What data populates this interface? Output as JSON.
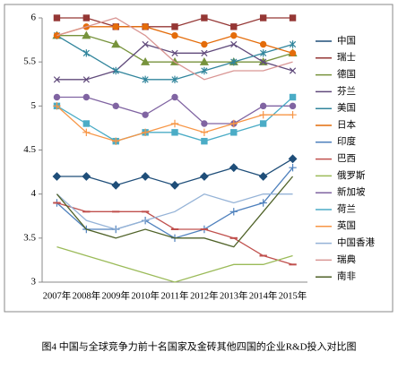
{
  "chart_data": {
    "type": "line",
    "caption": "图4 中国与全球竞争力前十名国家及金砖其他四国的企业R&D投入对比图",
    "categories": [
      "2007年",
      "2008年",
      "2009年",
      "2010年",
      "2011年",
      "2012年",
      "2013年",
      "2014年",
      "2015年"
    ],
    "ylim": [
      3,
      6
    ],
    "yticks": [
      3,
      3.5,
      4,
      4.5,
      5,
      5.5,
      6
    ],
    "grid": false,
    "legend": "right",
    "series": [
      {
        "name": "中国",
        "color": "#1f4e79",
        "marker": "diamond",
        "values": [
          4.2,
          4.2,
          4.1,
          4.2,
          4.1,
          4.2,
          4.3,
          4.2,
          4.4
        ]
      },
      {
        "name": "瑞士",
        "color": "#953735",
        "marker": "square",
        "values": [
          6,
          6,
          5.9,
          5.9,
          5.9,
          6,
          5.9,
          6,
          6
        ]
      },
      {
        "name": "德国",
        "color": "#77933c",
        "marker": "triangle",
        "values": [
          5.8,
          5.8,
          5.7,
          5.5,
          5.5,
          5.5,
          5.5,
          5.5,
          5.6
        ]
      },
      {
        "name": "芬兰",
        "color": "#604a7b",
        "marker": "x",
        "values": [
          5.3,
          5.3,
          5.4,
          5.7,
          5.6,
          5.6,
          5.7,
          5.5,
          5.4
        ]
      },
      {
        "name": "美国",
        "color": "#31859c",
        "marker": "star",
        "values": [
          5.8,
          5.6,
          5.4,
          5.3,
          5.3,
          5.4,
          5.5,
          5.6,
          5.7
        ]
      },
      {
        "name": "日本",
        "color": "#e46c0a",
        "marker": "circle",
        "values": [
          5.8,
          5.9,
          5.9,
          5.9,
          5.8,
          5.7,
          5.8,
          5.7,
          5.6
        ]
      },
      {
        "name": "印度",
        "color": "#4f81bd",
        "marker": "plus",
        "values": [
          3.9,
          3.6,
          3.6,
          3.7,
          3.5,
          3.6,
          3.8,
          3.9,
          4.3
        ]
      },
      {
        "name": "巴西",
        "color": "#c0504d",
        "marker": "dash",
        "values": [
          3.9,
          3.8,
          3.8,
          3.8,
          3.6,
          3.6,
          3.5,
          3.3,
          3.2
        ]
      },
      {
        "name": "俄罗斯",
        "color": "#9bbb59",
        "marker": "none",
        "values": [
          3.4,
          3.3,
          3.2,
          3.1,
          3.0,
          3.1,
          3.2,
          3.2,
          3.3
        ]
      },
      {
        "name": "新加坡",
        "color": "#8064a2",
        "marker": "circle",
        "values": [
          5.1,
          5.1,
          5.0,
          4.9,
          5.1,
          4.8,
          4.8,
          5.0,
          5.0
        ]
      },
      {
        "name": "荷兰",
        "color": "#4bacc6",
        "marker": "square",
        "values": [
          5.0,
          4.8,
          4.6,
          4.7,
          4.7,
          4.6,
          4.7,
          4.8,
          5.1
        ]
      },
      {
        "name": "英国",
        "color": "#f79646",
        "marker": "plus",
        "values": [
          5.0,
          4.7,
          4.6,
          4.7,
          4.8,
          4.7,
          4.8,
          4.9,
          4.9
        ]
      },
      {
        "name": "中国香港",
        "color": "#95b3d7",
        "marker": "none",
        "values": [
          4.0,
          3.7,
          3.6,
          3.7,
          3.8,
          4.0,
          3.9,
          4.0,
          4.0
        ]
      },
      {
        "name": "瑞典",
        "color": "#d99694",
        "marker": "none",
        "values": [
          5.8,
          5.9,
          6.0,
          5.8,
          5.5,
          5.3,
          5.4,
          5.4,
          5.5
        ]
      },
      {
        "name": "南非",
        "color": "#4f6228",
        "marker": "none",
        "values": [
          4.0,
          3.6,
          3.5,
          3.6,
          3.5,
          3.5,
          3.4,
          3.8,
          4.2
        ]
      }
    ]
  }
}
